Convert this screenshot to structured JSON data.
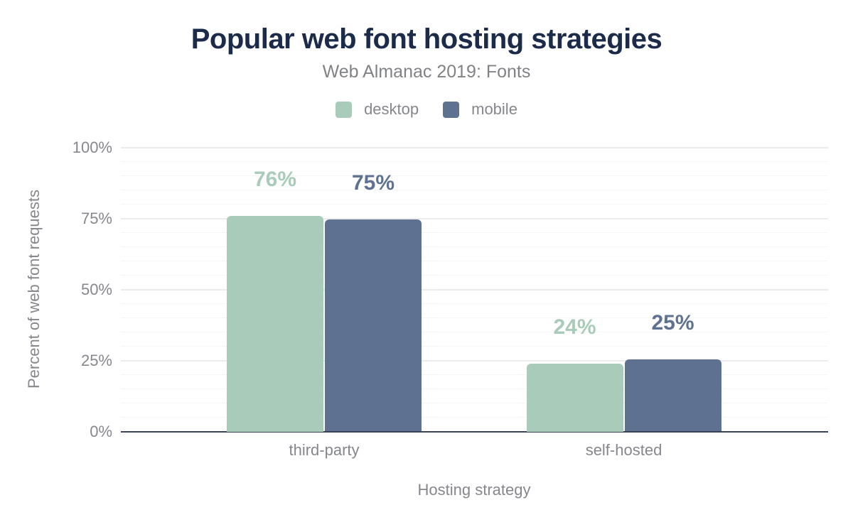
{
  "header": {
    "title": "Popular web font hosting strategies",
    "subtitle": "Web Almanac 2019: Fonts"
  },
  "chart_data": {
    "type": "bar",
    "title": "Popular web font hosting strategies",
    "subtitle": "Web Almanac 2019: Fonts",
    "categories": [
      "third-party",
      "self-hosted"
    ],
    "series": [
      {
        "name": "desktop",
        "color": "#a9cbba",
        "values": [
          76,
          24
        ],
        "value_labels": [
          "76%",
          "24%"
        ],
        "values_precise": [
          76,
          24
        ]
      },
      {
        "name": "mobile",
        "color": "#5e7190",
        "values": [
          75,
          25
        ],
        "value_labels": [
          "75%",
          "25%"
        ],
        "values_precise": [
          74.6,
          25.4
        ]
      }
    ],
    "xlabel": "Hosting strategy",
    "ylabel": "Percent of web font requests",
    "ylim": [
      0,
      100
    ],
    "yticks": {
      "values": [
        0,
        25,
        50,
        75,
        100
      ],
      "labels": [
        "0%",
        "25%",
        "50%",
        "75%",
        "100%"
      ]
    },
    "grid": {
      "on": true,
      "minor_step": 5,
      "major_step": 25
    },
    "legend_position": "top",
    "colors": {
      "title": "#1c2b4a",
      "muted_text": "#85878c",
      "axis_line": "#3a4356",
      "grid_minor": "#f5f5f5",
      "grid_major": "#ececec",
      "background": "#ffffff"
    }
  }
}
